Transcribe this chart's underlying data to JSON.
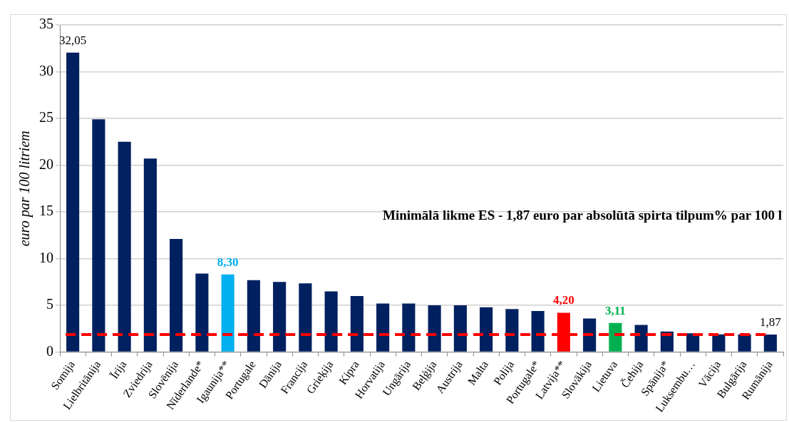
{
  "chart_data": {
    "type": "bar",
    "ylabel": "euro par 100 litriem",
    "categories": [
      "Somija",
      "Lielbritānija",
      "Īrija",
      "Zviedrija",
      "Slovēnija",
      "Nīderlande*",
      "Igaunija**",
      "Portugale",
      "Dānija",
      "Francija",
      "Grieķija",
      "Kipra",
      "Horvatija",
      "Ungārija",
      "Beļģija",
      "Austrija",
      "Malta",
      "Polija",
      "Portugale*",
      "Latvija**",
      "Slovākija",
      "Lietuva",
      "Čehija",
      "Spānija*",
      "Luksembu…",
      "Vācija",
      "Bulgārija",
      "Rumānija"
    ],
    "values": [
      32.05,
      24.9,
      22.5,
      20.7,
      12.1,
      8.4,
      8.3,
      7.7,
      7.5,
      7.35,
      6.5,
      6.0,
      5.2,
      5.2,
      5.0,
      5.0,
      4.8,
      4.6,
      4.4,
      4.2,
      3.6,
      3.11,
      2.9,
      2.2,
      2.0,
      1.9,
      1.9,
      1.87
    ],
    "color": "#002060",
    "colors": [
      "#002060",
      "#002060",
      "#002060",
      "#002060",
      "#002060",
      "#002060",
      "#00b0f0",
      "#002060",
      "#002060",
      "#002060",
      "#002060",
      "#002060",
      "#002060",
      "#002060",
      "#002060",
      "#002060",
      "#002060",
      "#002060",
      "#002060",
      "#ff0000",
      "#002060",
      "#00b050",
      "#002060",
      "#002060",
      "#002060",
      "#002060",
      "#002060",
      "#002060"
    ],
    "value_labels": [
      "32,05",
      null,
      null,
      null,
      null,
      null,
      "8,30",
      null,
      null,
      null,
      null,
      null,
      null,
      null,
      null,
      null,
      null,
      null,
      null,
      "4,20",
      null,
      "3,11",
      null,
      null,
      null,
      null,
      null,
      "1,87"
    ],
    "ylim": [
      0,
      35
    ],
    "yticks": [
      0,
      5,
      10,
      15,
      20,
      25,
      30,
      35
    ],
    "grid": "y",
    "legend": false,
    "ref_lines": [
      {
        "axis": "y",
        "value": 1.87,
        "color": "#ff0000",
        "line_style": "dashed"
      }
    ],
    "annotations": [
      "Minimālā likme ES - 1,87 euro par absolūtā spirta tilpum% par 100 l"
    ]
  }
}
